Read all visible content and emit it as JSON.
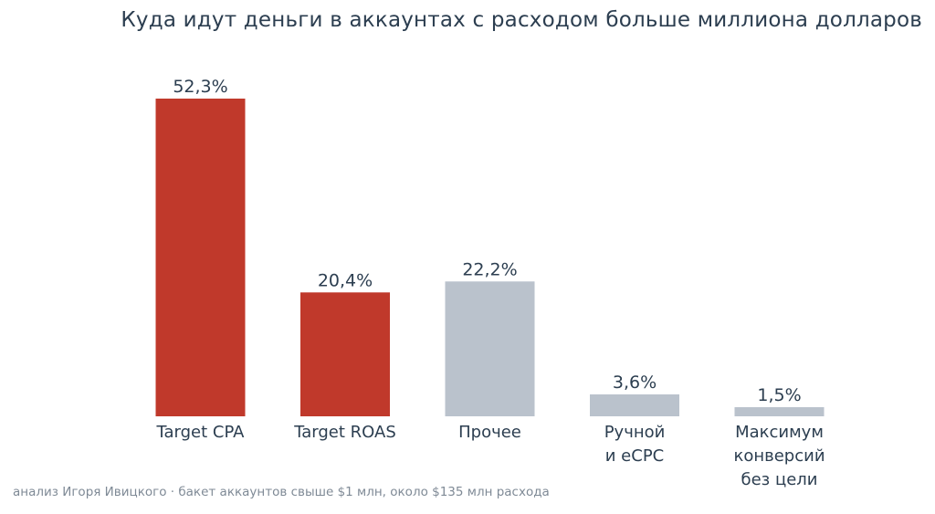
{
  "title": "Куда идут деньги в аккаунтах с расходом больше миллиона долларов",
  "footer": "анализ Игоря Ивицкого · бакет аккаунтов свыше $1 млн, около $135 млн расхода",
  "colors": {
    "accent": "#c0392b",
    "neutral": "#bac2cc",
    "text": "#2c3e50",
    "muted": "#7f8a96"
  },
  "chart_data": {
    "type": "bar",
    "title": "Куда идут деньги в аккаунтах с расходом больше миллиона долларов",
    "xlabel": "",
    "ylabel": "",
    "ylim": [
      0,
      52.3
    ],
    "grid": false,
    "legend": "none",
    "categories": [
      [
        "Target CPA"
      ],
      [
        "Target ROAS"
      ],
      [
        "Прочее"
      ],
      [
        "Ручной",
        "и eCPC"
      ],
      [
        "Максимум",
        "конверсий",
        "без цели"
      ]
    ],
    "values": [
      52.3,
      20.4,
      22.2,
      3.6,
      1.5
    ],
    "value_labels": [
      "52,3%",
      "20,4%",
      "22,2%",
      "3,6%",
      "1,5%"
    ],
    "bar_colors": [
      "#c0392b",
      "#c0392b",
      "#bac2cc",
      "#bac2cc",
      "#bac2cc"
    ]
  }
}
